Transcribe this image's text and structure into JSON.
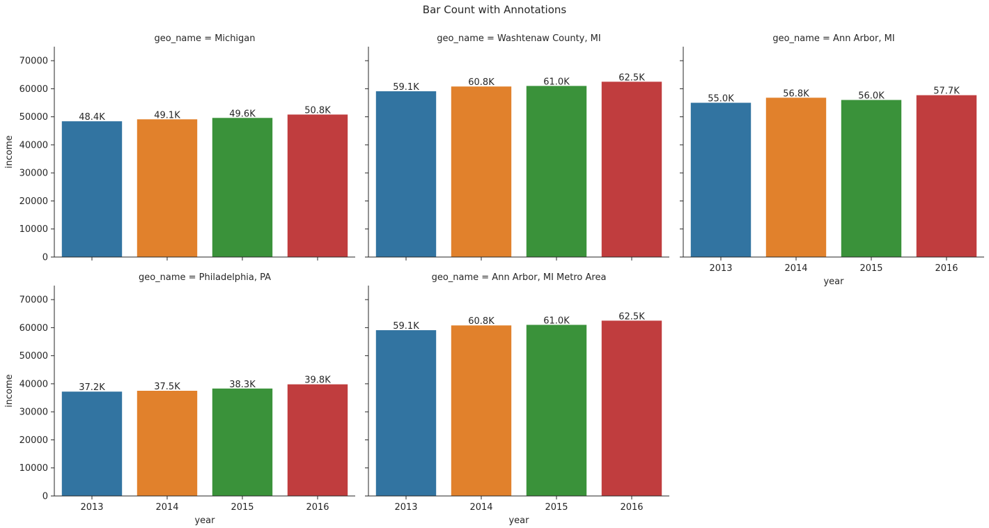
{
  "figure": {
    "title": "Bar Count with Annotations"
  },
  "chart_data": {
    "type": "bar",
    "title": "Bar Count with Annotations",
    "facet_label_prefix": "geo_name = ",
    "xlabel": "year",
    "ylabel": "income",
    "categories": [
      "2013",
      "2014",
      "2015",
      "2016"
    ],
    "category_colors": [
      "#3274a1",
      "#e1812c",
      "#3a923a",
      "#c03d3e"
    ],
    "ylim": [
      0,
      75000
    ],
    "yticks": [
      0,
      10000,
      20000,
      30000,
      40000,
      50000,
      60000,
      70000
    ],
    "grid": false,
    "legend": "none",
    "layout": {
      "rows": 2,
      "cols": 3
    },
    "facets": [
      {
        "name": "Michigan",
        "values": [
          48400,
          49100,
          49600,
          50800
        ],
        "labels": [
          "48.4K",
          "49.1K",
          "49.6K",
          "50.8K"
        ]
      },
      {
        "name": "Washtenaw County, MI",
        "values": [
          59100,
          60800,
          61000,
          62500
        ],
        "labels": [
          "59.1K",
          "60.8K",
          "61.0K",
          "62.5K"
        ]
      },
      {
        "name": "Ann Arbor, MI",
        "values": [
          55000,
          56800,
          56000,
          57700
        ],
        "labels": [
          "55.0K",
          "56.8K",
          "56.0K",
          "57.7K"
        ]
      },
      {
        "name": "Philadelphia, PA",
        "values": [
          37200,
          37500,
          38300,
          39800
        ],
        "labels": [
          "37.2K",
          "37.5K",
          "38.3K",
          "39.8K"
        ]
      },
      {
        "name": "Ann Arbor, MI Metro Area",
        "values": [
          59100,
          60800,
          61000,
          62500
        ],
        "labels": [
          "59.1K",
          "60.8K",
          "61.0K",
          "62.5K"
        ]
      }
    ]
  }
}
